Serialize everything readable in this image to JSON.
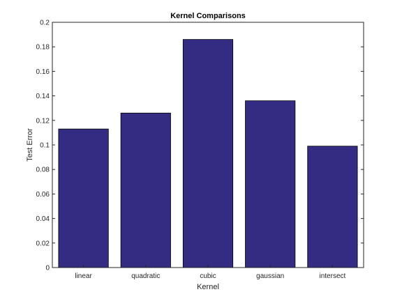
{
  "chart_data": {
    "type": "bar",
    "title": "Kernel Comparisons",
    "xlabel": "Kernel",
    "ylabel": "Test Error",
    "categories": [
      "linear",
      "quadratic",
      "cubic",
      "gaussian",
      "intersect"
    ],
    "values": [
      0.113,
      0.126,
      0.186,
      0.136,
      0.099
    ],
    "ylim": [
      0,
      0.2
    ],
    "yticks": [
      "0",
      "0.02",
      "0.04",
      "0.06",
      "0.08",
      "0.1",
      "0.12",
      "0.14",
      "0.16",
      "0.18",
      "0.2"
    ],
    "grid": false,
    "bar_color": "#342c83",
    "bar_edge_color": "#000000"
  }
}
